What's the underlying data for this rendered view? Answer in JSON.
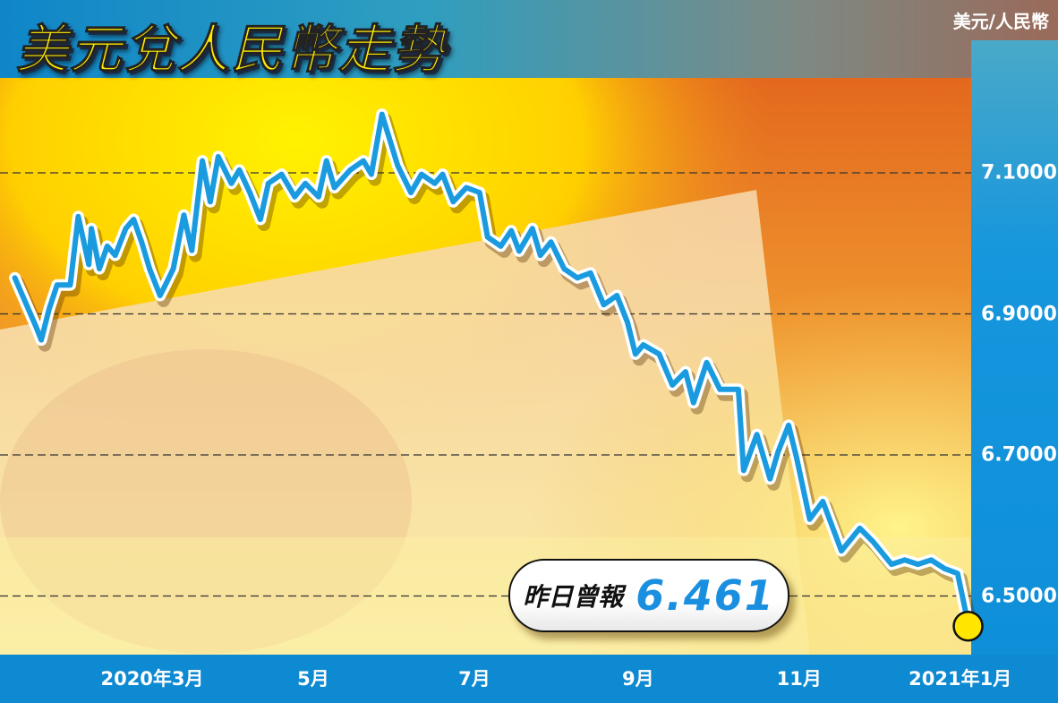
{
  "header": {
    "title": "美元兌人民幣走勢",
    "unit_label": "美元/人民幣"
  },
  "callout": {
    "label": "昨日曾報",
    "value": "6.461"
  },
  "colors": {
    "line": "#1a9be0",
    "line_outline": "#ffffff",
    "end_marker": "#ffe600",
    "panel": "#0e8ad2",
    "title_text": "#ffec00"
  },
  "chart_data": {
    "type": "line",
    "title": "美元兌人民幣走勢",
    "ylabel": "美元/人民幣",
    "ylim": [
      6.42,
      7.26
    ],
    "grid": "dashed horizontal",
    "yticks": [
      {
        "value": 7.1,
        "label": "7.1000"
      },
      {
        "value": 6.9,
        "label": "6.9000"
      },
      {
        "value": 6.7,
        "label": "6.7000"
      },
      {
        "value": 6.5,
        "label": "6.5000"
      }
    ],
    "xticks": [
      {
        "date": "2020-03-01",
        "label": "2020年3月"
      },
      {
        "date": "2020-05-01",
        "label": "5月"
      },
      {
        "date": "2020-07-01",
        "label": "7月"
      },
      {
        "date": "2020-09-01",
        "label": "9月"
      },
      {
        "date": "2020-11-01",
        "label": "11月"
      },
      {
        "date": "2021-01-01",
        "label": "2021年1月"
      }
    ],
    "series": [
      {
        "points": [
          [
            "2020-01-09",
            6.951
          ],
          [
            "2020-01-17",
            6.882
          ],
          [
            "2020-01-19",
            6.863
          ],
          [
            "2020-01-22",
            6.907
          ],
          [
            "2020-01-25",
            6.941
          ],
          [
            "2020-01-30",
            6.941
          ],
          [
            "2020-02-02",
            7.038
          ],
          [
            "2020-02-06",
            6.97
          ],
          [
            "2020-02-07",
            7.021
          ],
          [
            "2020-02-10",
            6.964
          ],
          [
            "2020-02-13",
            6.996
          ],
          [
            "2020-02-16",
            6.983
          ],
          [
            "2020-02-20",
            7.021
          ],
          [
            "2020-02-23",
            7.034
          ],
          [
            "2020-02-26",
            7.002
          ],
          [
            "2020-02-29",
            6.964
          ],
          [
            "2020-03-04",
            6.926
          ],
          [
            "2020-03-06",
            6.941
          ],
          [
            "2020-03-09",
            6.964
          ],
          [
            "2020-03-13",
            7.04
          ],
          [
            "2020-03-16",
            6.99
          ],
          [
            "2020-03-20",
            7.117
          ],
          [
            "2020-03-23",
            7.059
          ],
          [
            "2020-03-26",
            7.123
          ],
          [
            "2020-03-31",
            7.085
          ],
          [
            "2020-04-03",
            7.104
          ],
          [
            "2020-04-07",
            7.072
          ],
          [
            "2020-04-11",
            7.034
          ],
          [
            "2020-04-14",
            7.085
          ],
          [
            "2020-04-19",
            7.098
          ],
          [
            "2020-04-24",
            7.066
          ],
          [
            "2020-04-28",
            7.085
          ],
          [
            "2020-05-03",
            7.066
          ],
          [
            "2020-05-06",
            7.117
          ],
          [
            "2020-05-09",
            7.079
          ],
          [
            "2020-05-15",
            7.104
          ],
          [
            "2020-05-20",
            7.117
          ],
          [
            "2020-05-23",
            7.098
          ],
          [
            "2020-05-27",
            7.183
          ],
          [
            "2020-06-02",
            7.11
          ],
          [
            "2020-06-07",
            7.072
          ],
          [
            "2020-06-11",
            7.098
          ],
          [
            "2020-06-16",
            7.085
          ],
          [
            "2020-06-19",
            7.098
          ],
          [
            "2020-06-23",
            7.059
          ],
          [
            "2020-06-28",
            7.079
          ],
          [
            "2020-07-03",
            7.072
          ],
          [
            "2020-07-06",
            7.009
          ],
          [
            "2020-07-11",
            6.996
          ],
          [
            "2020-07-15",
            7.018
          ],
          [
            "2020-07-18",
            6.989
          ],
          [
            "2020-07-23",
            7.021
          ],
          [
            "2020-07-26",
            6.983
          ],
          [
            "2020-07-30",
            7.002
          ],
          [
            "2020-08-04",
            6.964
          ],
          [
            "2020-08-09",
            6.951
          ],
          [
            "2020-08-14",
            6.958
          ],
          [
            "2020-08-19",
            6.913
          ],
          [
            "2020-08-24",
            6.926
          ],
          [
            "2020-08-28",
            6.888
          ],
          [
            "2020-08-31",
            6.843
          ],
          [
            "2020-09-03",
            6.856
          ],
          [
            "2020-09-09",
            6.843
          ],
          [
            "2020-09-14",
            6.799
          ],
          [
            "2020-09-19",
            6.818
          ],
          [
            "2020-09-22",
            6.774
          ],
          [
            "2020-09-27",
            6.831
          ],
          [
            "2020-10-02",
            6.793
          ],
          [
            "2020-10-09",
            6.793
          ],
          [
            "2020-10-11",
            6.678
          ],
          [
            "2020-10-16",
            6.729
          ],
          [
            "2020-10-21",
            6.666
          ],
          [
            "2020-10-24",
            6.704
          ],
          [
            "2020-10-28",
            6.742
          ],
          [
            "2020-10-31",
            6.697
          ],
          [
            "2020-11-05",
            6.609
          ],
          [
            "2020-11-10",
            6.634
          ],
          [
            "2020-11-17",
            6.564
          ],
          [
            "2020-11-24",
            6.596
          ],
          [
            "2020-11-29",
            6.577
          ],
          [
            "2020-12-06",
            6.545
          ],
          [
            "2020-12-11",
            6.551
          ],
          [
            "2020-12-16",
            6.545
          ],
          [
            "2020-12-21",
            6.551
          ],
          [
            "2020-12-26",
            6.539
          ],
          [
            "2020-12-31",
            6.532
          ],
          [
            "2021-01-04",
            6.461
          ]
        ]
      }
    ]
  }
}
